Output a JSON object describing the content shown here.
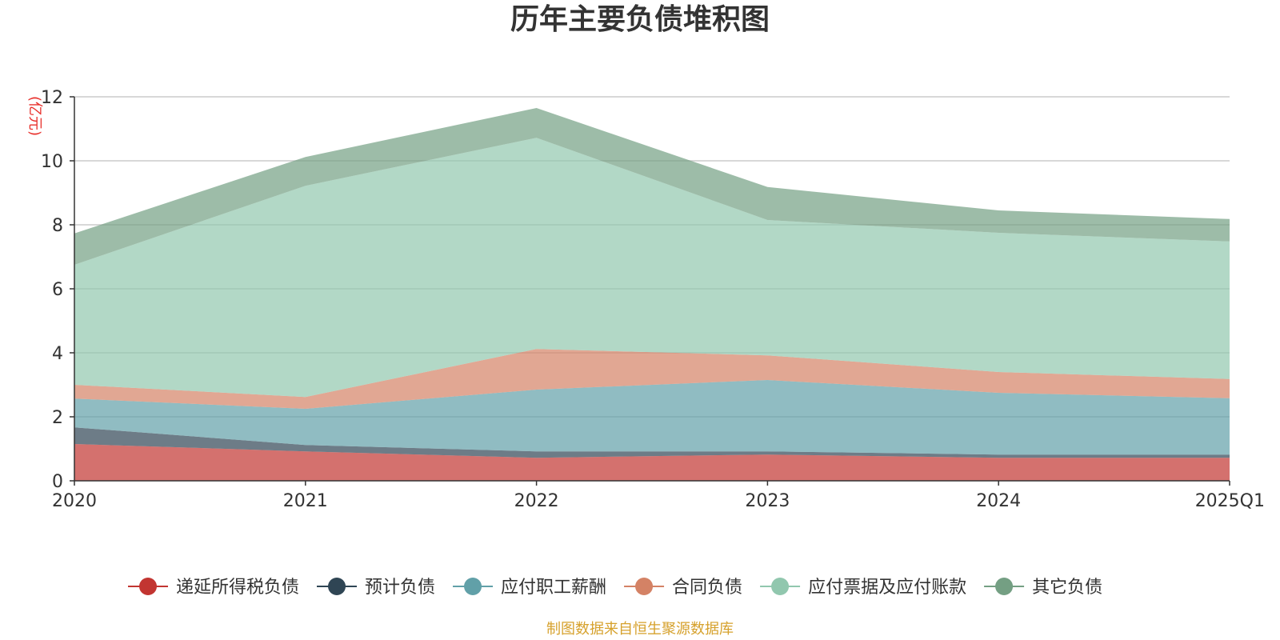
{
  "chart_data": {
    "type": "area",
    "title": "历年主要负债堆积图",
    "unit_label": "(亿元)",
    "x": [
      "2020",
      "2021",
      "2022",
      "2023",
      "2024",
      "2025Q1"
    ],
    "y_ticks": [
      "0",
      "2",
      "4",
      "6",
      "8",
      "10",
      "12"
    ],
    "ylim": [
      0,
      12
    ],
    "stacked": true,
    "grid": true,
    "legend_position": "bottom",
    "series": [
      {
        "name": "递延所得税负债",
        "color": "#c23531",
        "values": [
          1.15,
          0.92,
          0.72,
          0.82,
          0.72,
          0.72
        ]
      },
      {
        "name": "预计负债",
        "color": "#2f4554",
        "values": [
          0.52,
          0.2,
          0.2,
          0.1,
          0.1,
          0.1
        ]
      },
      {
        "name": "应付职工薪酬",
        "color": "#61a0a8",
        "values": [
          0.9,
          1.13,
          1.93,
          2.23,
          1.93,
          1.76
        ]
      },
      {
        "name": "合同负债",
        "color": "#d48265",
        "values": [
          0.43,
          0.37,
          1.27,
          0.77,
          0.65,
          0.6
        ]
      },
      {
        "name": "应付票据及应付账款",
        "color": "#91c7ae",
        "values": [
          3.75,
          6.6,
          6.6,
          4.23,
          4.35,
          4.3
        ]
      },
      {
        "name": "其它负债",
        "color": "#749f83",
        "values": [
          0.98,
          0.9,
          0.93,
          1.03,
          0.7,
          0.7
        ]
      }
    ]
  },
  "source_note": "制图数据来自恒生聚源数据库"
}
